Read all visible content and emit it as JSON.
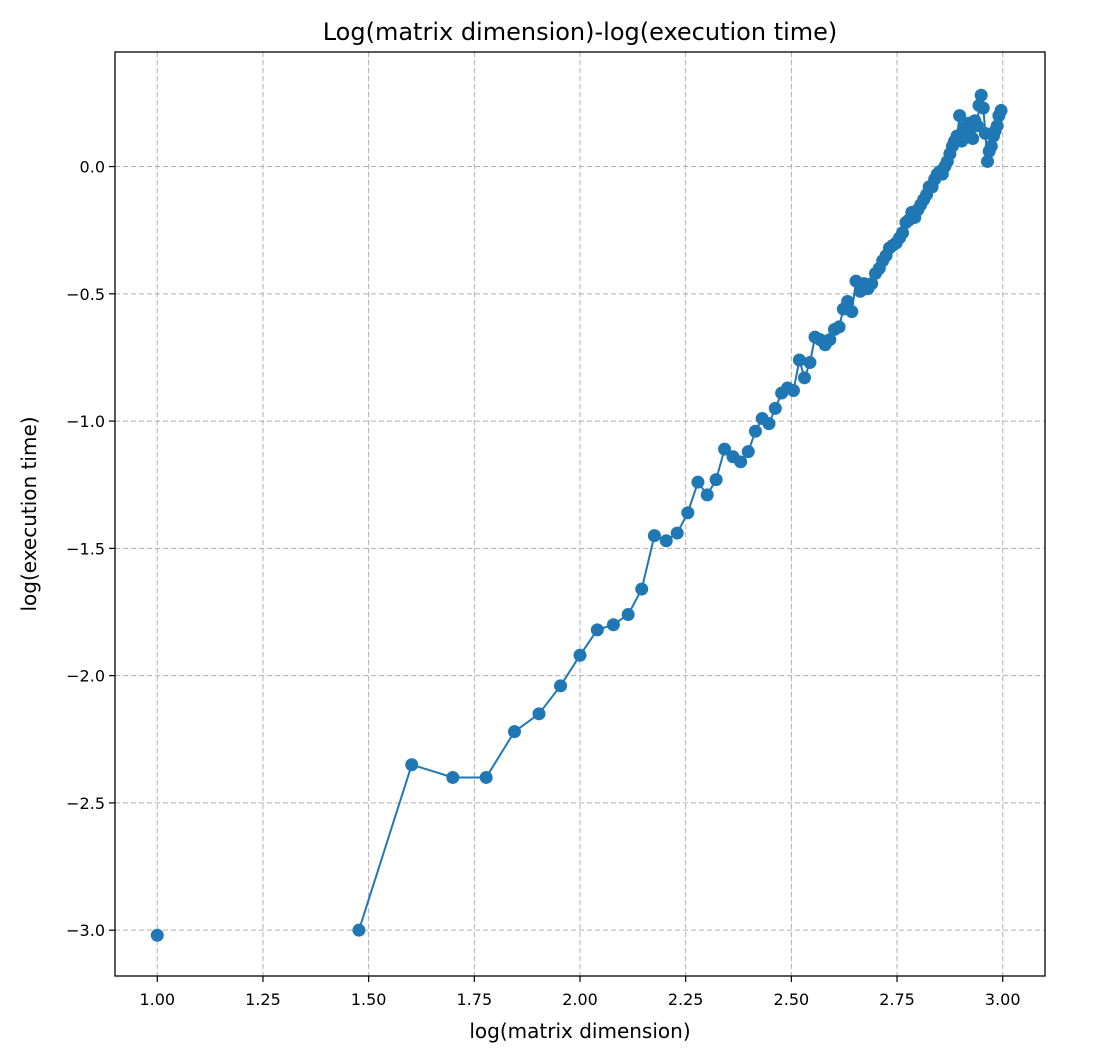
{
  "chart_data": {
    "type": "line",
    "title": "Log(matrix dimension)-log(execution time)",
    "xlabel": "log(matrix dimension)",
    "ylabel": "log(execution time)",
    "xlim": [
      0.9,
      3.1
    ],
    "ylim": [
      -3.18,
      0.45
    ],
    "x_ticks": [
      1.0,
      1.25,
      1.5,
      1.75,
      2.0,
      2.25,
      2.5,
      2.75,
      3.0
    ],
    "x_tick_labels": [
      "1.00",
      "1.25",
      "1.50",
      "1.75",
      "2.00",
      "2.25",
      "2.50",
      "2.75",
      "3.00"
    ],
    "y_ticks": [
      0.0,
      -0.5,
      -1.0,
      -1.5,
      -2.0,
      -2.5,
      -3.0
    ],
    "y_tick_labels": [
      "0.0",
      "−0.5",
      "−1.0",
      "−1.5",
      "−2.0",
      "−2.5",
      "−3.0"
    ],
    "grid": true,
    "series": [
      {
        "color": "#1f77b4",
        "marker": "circle",
        "x": [
          1.0,
          1.477,
          1.602,
          1.699,
          1.778,
          1.845,
          1.903,
          1.954,
          2.0,
          2.041,
          2.079,
          2.114,
          2.146,
          2.176,
          2.204,
          2.23,
          2.255,
          2.279,
          2.301,
          2.322,
          2.342,
          2.362,
          2.38,
          2.398,
          2.415,
          2.431,
          2.447,
          2.462,
          2.477,
          2.491,
          2.505,
          2.519,
          2.531,
          2.544,
          2.556,
          2.568,
          2.58,
          2.591,
          2.602,
          2.613,
          2.623,
          2.633,
          2.643,
          2.653,
          2.663,
          2.672,
          2.681,
          2.69,
          2.699,
          2.708,
          2.716,
          2.724,
          2.732,
          2.74,
          2.748,
          2.756,
          2.763,
          2.771,
          2.778,
          2.785,
          2.792,
          2.799,
          2.806,
          2.813,
          2.82,
          2.826,
          2.833,
          2.839,
          2.845,
          2.851,
          2.857,
          2.863,
          2.869,
          2.875,
          2.881,
          2.886,
          2.892,
          2.898,
          2.903,
          2.908,
          2.914,
          2.919,
          2.924,
          2.929,
          2.934,
          2.94,
          2.944,
          2.949,
          2.954,
          2.959,
          2.964,
          2.968,
          2.973,
          2.978,
          2.982,
          2.987,
          2.991,
          2.996
        ],
        "y": [
          -3.02,
          -3.0,
          -2.35,
          -2.4,
          -2.4,
          -2.22,
          -2.15,
          -2.04,
          -1.92,
          -1.82,
          -1.8,
          -1.76,
          -1.66,
          -1.45,
          -1.47,
          -1.44,
          -1.36,
          -1.24,
          -1.29,
          -1.23,
          -1.11,
          -1.14,
          -1.16,
          -1.12,
          -1.04,
          -0.99,
          -1.01,
          -0.95,
          -0.89,
          -0.87,
          -0.88,
          -0.76,
          -0.83,
          -0.77,
          -0.67,
          -0.68,
          -0.7,
          -0.68,
          -0.64,
          -0.63,
          -0.56,
          -0.53,
          -0.57,
          -0.45,
          -0.49,
          -0.46,
          -0.48,
          -0.46,
          -0.42,
          -0.4,
          -0.37,
          -0.35,
          -0.32,
          -0.31,
          -0.3,
          -0.28,
          -0.26,
          -0.22,
          -0.21,
          -0.18,
          -0.2,
          -0.17,
          -0.15,
          -0.13,
          -0.11,
          -0.08,
          -0.08,
          -0.05,
          -0.03,
          -0.02,
          -0.03,
          0.0,
          0.02,
          0.05,
          0.08,
          0.1,
          0.12,
          0.2,
          0.1,
          0.15,
          0.12,
          0.17,
          0.15,
          0.11,
          0.18,
          0.16,
          0.24,
          0.28,
          0.23,
          0.13,
          0.02,
          0.06,
          0.08,
          0.12,
          0.14,
          0.16,
          0.2,
          0.22
        ]
      }
    ]
  }
}
